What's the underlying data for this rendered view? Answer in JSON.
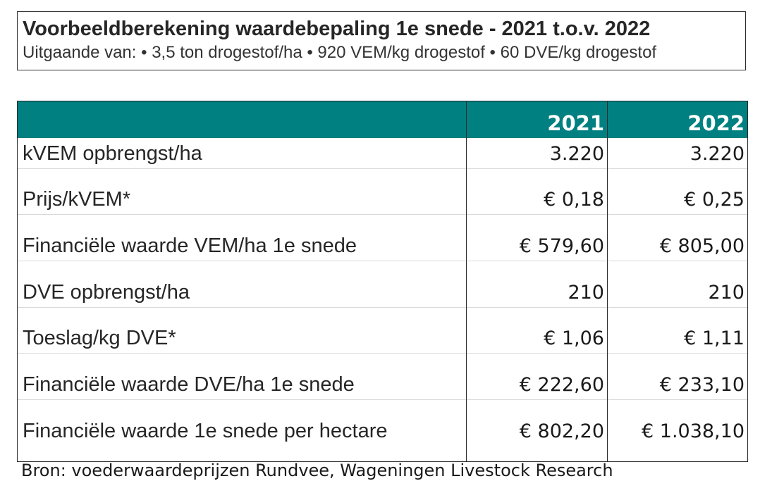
{
  "header": {
    "title": "Voorbeeldberekening waardebepaling 1e snede - 2021 t.o.v. 2022",
    "subtitle": "Uitgaande van: • 3,5 ton drogestof/ha • 920 VEM/kg drogestof • 60 DVE/kg drogestof"
  },
  "table": {
    "columns": [
      "",
      "2021",
      "2022"
    ],
    "rows": [
      {
        "label": "kVEM opbrengst/ha",
        "v2021": "3.220",
        "v2022": "3.220"
      },
      {
        "label": "Prijs/kVEM*",
        "v2021": "€ 0,18",
        "v2022": "€ 0,25"
      },
      {
        "label": "Financiële waarde VEM/ha 1e snede",
        "v2021": "€ 579,60",
        "v2022": "€ 805,00"
      },
      {
        "label": "DVE opbrengst/ha",
        "v2021": "210",
        "v2022": "210"
      },
      {
        "label": "Toeslag/kg DVE*",
        "v2021": "€ 1,06",
        "v2022": "€ 1,11"
      },
      {
        "label": "Financiële waarde DVE/ha 1e snede",
        "v2021": "€ 222,60",
        "v2022": "€ 233,10"
      },
      {
        "label": "Financiële waarde 1e snede per hectare",
        "v2021": "€ 802,20",
        "v2022": "€ 1.038,10"
      }
    ]
  },
  "footer": {
    "source": "Bron: voederwaardeprijzen Rundvee, Wageningen Livestock Research"
  },
  "colors": {
    "header_fill": "#008080",
    "header_text": "#ffffff",
    "border": "#2b2b2b",
    "row_divider": "#d9d9d9"
  }
}
